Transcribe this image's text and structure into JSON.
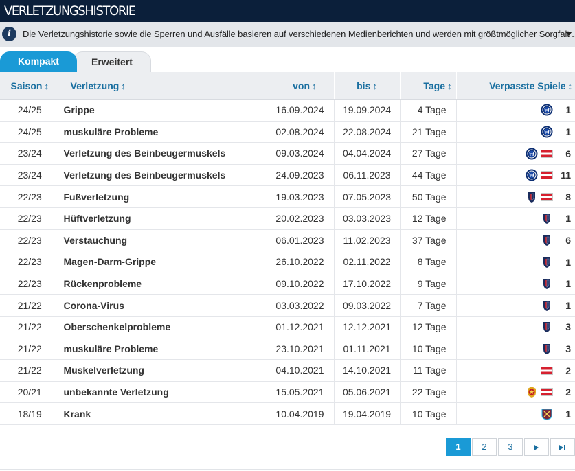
{
  "header": {
    "title": "VERLETZUNGSHISTORIE"
  },
  "info": {
    "icon": "info-icon",
    "text": "Die Verletzungshistorie sowie die Sperren und Ausfälle basieren auf verschiedenen Medienberichten und werden mit größtmöglicher Sorgfalt ..."
  },
  "tabs": [
    {
      "label": "Kompakt",
      "active": true
    },
    {
      "label": "Erweitert",
      "active": false
    }
  ],
  "columns": {
    "season": "Saison",
    "injury": "Verletzung",
    "from": "von",
    "until": "bis",
    "days": "Tage",
    "missed": "Verpasste Spiele"
  },
  "rows": [
    {
      "season": "24/25",
      "injury": "Grippe",
      "from": "16.09.2024",
      "until": "19.09.2024",
      "days": "4 Tage",
      "clubs": [
        "inter-crest"
      ],
      "missed": "1"
    },
    {
      "season": "24/25",
      "injury": "muskuläre Probleme",
      "from": "02.08.2024",
      "until": "22.08.2024",
      "days": "21 Tage",
      "clubs": [
        "inter-crest"
      ],
      "missed": "1"
    },
    {
      "season": "23/24",
      "injury": "Verletzung des Beinbeugermuskels",
      "from": "09.03.2024",
      "until": "04.04.2024",
      "days": "27 Tage",
      "clubs": [
        "inter-crest",
        "austria-flag"
      ],
      "missed": "6"
    },
    {
      "season": "23/24",
      "injury": "Verletzung des Beinbeugermuskels",
      "from": "24.09.2023",
      "until": "06.11.2023",
      "days": "44 Tage",
      "clubs": [
        "inter-crest",
        "austria-flag"
      ],
      "missed": "11"
    },
    {
      "season": "22/23",
      "injury": "Fußverletzung",
      "from": "19.03.2023",
      "until": "07.05.2023",
      "days": "50 Tage",
      "clubs": [
        "bologna-crest",
        "austria-flag"
      ],
      "missed": "8"
    },
    {
      "season": "22/23",
      "injury": "Hüftverletzung",
      "from": "20.02.2023",
      "until": "03.03.2023",
      "days": "12 Tage",
      "clubs": [
        "bologna-crest"
      ],
      "missed": "1"
    },
    {
      "season": "22/23",
      "injury": "Verstauchung",
      "from": "06.01.2023",
      "until": "11.02.2023",
      "days": "37 Tage",
      "clubs": [
        "bologna-crest"
      ],
      "missed": "6"
    },
    {
      "season": "22/23",
      "injury": "Magen-Darm-Grippe",
      "from": "26.10.2022",
      "until": "02.11.2022",
      "days": "8 Tage",
      "clubs": [
        "bologna-crest"
      ],
      "missed": "1"
    },
    {
      "season": "22/23",
      "injury": "Rückenprobleme",
      "from": "09.10.2022",
      "until": "17.10.2022",
      "days": "9 Tage",
      "clubs": [
        "bologna-crest"
      ],
      "missed": "1"
    },
    {
      "season": "21/22",
      "injury": "Corona-Virus",
      "from": "03.03.2022",
      "until": "09.03.2022",
      "days": "7 Tage",
      "clubs": [
        "bologna-crest"
      ],
      "missed": "1"
    },
    {
      "season": "21/22",
      "injury": "Oberschenkelprobleme",
      "from": "01.12.2021",
      "until": "12.12.2021",
      "days": "12 Tage",
      "clubs": [
        "bologna-crest"
      ],
      "missed": "3"
    },
    {
      "season": "21/22",
      "injury": "muskuläre Probleme",
      "from": "23.10.2021",
      "until": "01.11.2021",
      "days": "10 Tage",
      "clubs": [
        "bologna-crest"
      ],
      "missed": "3"
    },
    {
      "season": "21/22",
      "injury": "Muskelverletzung",
      "from": "04.10.2021",
      "until": "14.10.2021",
      "days": "11 Tage",
      "clubs": [
        "austria-flag"
      ],
      "missed": "2"
    },
    {
      "season": "20/21",
      "injury": "unbekannte Verletzung",
      "from": "15.05.2021",
      "until": "05.06.2021",
      "days": "22 Tage",
      "clubs": [
        "sheriff-crest",
        "austria-flag"
      ],
      "missed": "2"
    },
    {
      "season": "18/19",
      "injury": "Krank",
      "from": "10.04.2019",
      "until": "19.04.2019",
      "days": "10 Tage",
      "clubs": [
        "westham-crest"
      ],
      "missed": "1"
    }
  ],
  "pagination": {
    "pages": [
      "1",
      "2",
      "3"
    ],
    "current": "1",
    "next_icon": "next-page-icon",
    "last_icon": "last-page-icon"
  },
  "colors": {
    "header_bg": "#0b1f3a",
    "accent": "#1a9ad6",
    "link": "#1a6fa0"
  }
}
